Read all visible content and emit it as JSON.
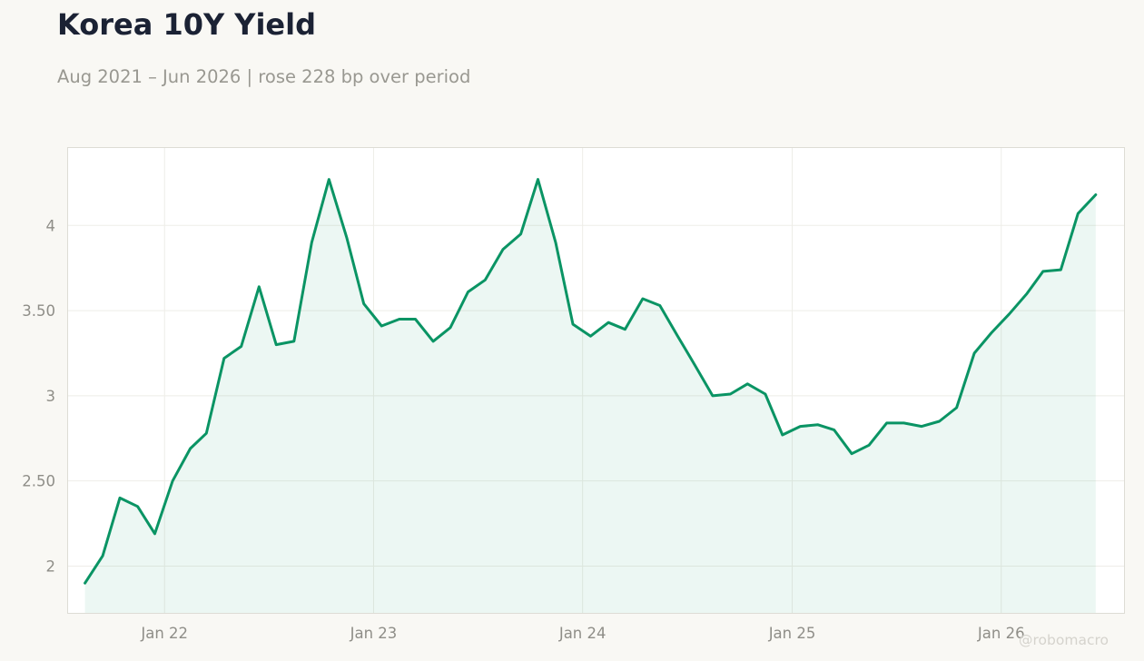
{
  "title": "Korea 10Y Yield",
  "subtitle": "Aug 2021 – Jun 2026 | rose 228 bp over period",
  "watermark": "@robomacro",
  "colors": {
    "line": "#0a9464",
    "fill": "#0a9464",
    "background": "#f9f8f4",
    "plot_background": "#ffffff",
    "grid": "#eeede8",
    "title": "#1b2234",
    "subtitle": "#999891"
  },
  "chart_data": {
    "type": "area",
    "title": "Korea 10Y Yield",
    "subtitle": "Aug 2021 – Jun 2026 | rose 228 bp over period",
    "xlabel": "",
    "ylabel": "",
    "grid": true,
    "legend": "none",
    "xlim": [
      "2021-07-15",
      "2026-08-05"
    ],
    "ylim": [
      1.72,
      4.46
    ],
    "x_ticks": [
      {
        "label": "Jan 22",
        "date": "2022-01-01"
      },
      {
        "label": "Jan 23",
        "date": "2023-01-01"
      },
      {
        "label": "Jan 24",
        "date": "2024-01-01"
      },
      {
        "label": "Jan 25",
        "date": "2025-01-01"
      },
      {
        "label": "Jan 26",
        "date": "2026-01-01"
      }
    ],
    "y_ticks": [
      {
        "label": "2",
        "value": 2.0
      },
      {
        "label": "2.50",
        "value": 2.5
      },
      {
        "label": "3",
        "value": 3.0
      },
      {
        "label": "3.50",
        "value": 3.5
      },
      {
        "label": "4",
        "value": 4.0
      }
    ],
    "series": [
      {
        "x": [
          "2021-08",
          "2021-09",
          "2021-10",
          "2021-11",
          "2021-12",
          "2022-01",
          "2022-02",
          "2022-03",
          "2022-04",
          "2022-05",
          "2022-06",
          "2022-07",
          "2022-08",
          "2022-09",
          "2022-10",
          "2022-11",
          "2022-12",
          "2023-01",
          "2023-02",
          "2023-03",
          "2023-04",
          "2023-05",
          "2023-06",
          "2023-07",
          "2023-08",
          "2023-09",
          "2023-10",
          "2023-11",
          "2023-12",
          "2024-01",
          "2024-02",
          "2024-03",
          "2024-04",
          "2024-05",
          "2024-06",
          "2024-07",
          "2024-08",
          "2024-09",
          "2024-10",
          "2024-11",
          "2024-12",
          "2025-01",
          "2025-02",
          "2025-03",
          "2025-04",
          "2025-05",
          "2025-06",
          "2025-07",
          "2025-08",
          "2025-09",
          "2025-10",
          "2025-11",
          "2025-12",
          "2026-01",
          "2026-02",
          "2026-03",
          "2026-04",
          "2026-05",
          "2026-06"
        ],
        "values": [
          1.9,
          2.06,
          2.4,
          2.35,
          2.19,
          2.5,
          2.69,
          2.78,
          3.22,
          3.29,
          3.64,
          3.3,
          3.32,
          3.9,
          4.27,
          3.93,
          3.54,
          3.41,
          3.45,
          3.45,
          3.32,
          3.4,
          3.61,
          3.68,
          3.86,
          3.95,
          4.27,
          3.9,
          3.42,
          3.35,
          3.43,
          3.39,
          3.57,
          3.53,
          3.35,
          3.18,
          3.0,
          3.01,
          3.07,
          3.01,
          2.77,
          2.82,
          2.83,
          2.8,
          2.66,
          2.71,
          2.84,
          2.84,
          2.82,
          2.85,
          2.93,
          3.25,
          3.37,
          3.48,
          3.6,
          3.73,
          3.74,
          4.07,
          4.18
        ]
      }
    ]
  }
}
